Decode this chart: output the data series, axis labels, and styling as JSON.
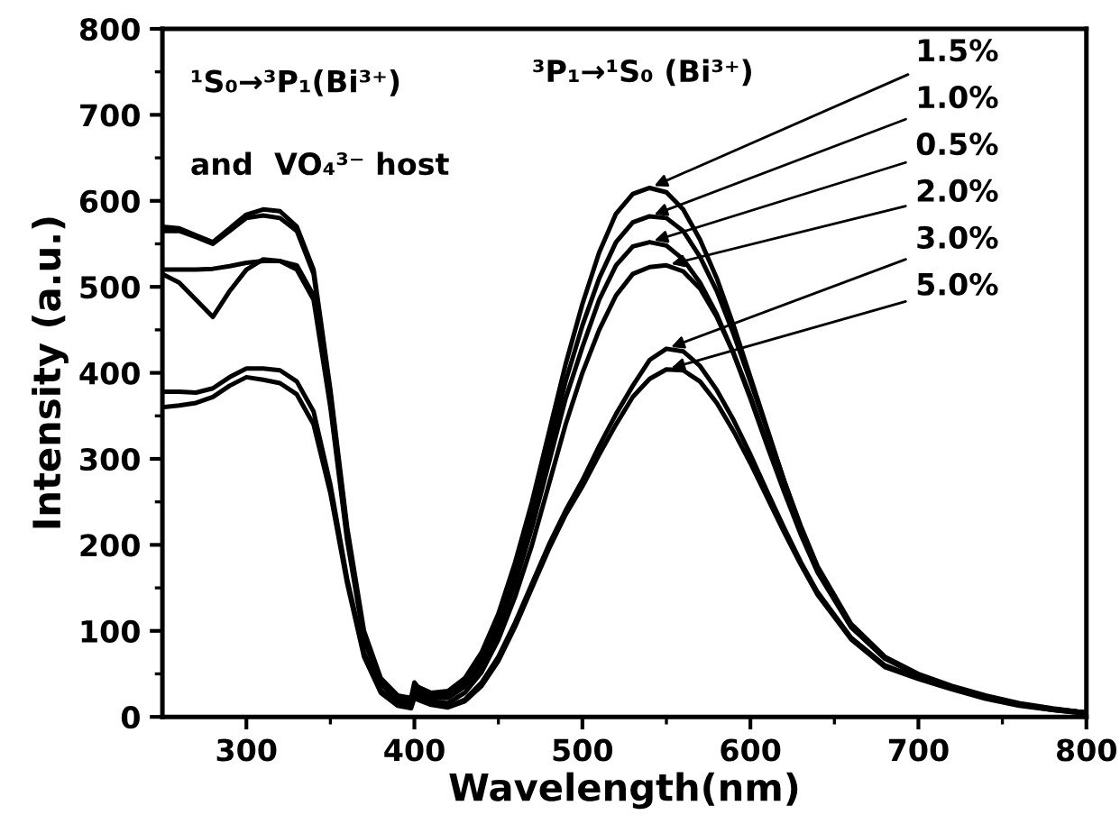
{
  "chart_data": {
    "type": "line",
    "xlabel": "Wavelength(nm)",
    "ylabel": "Intensity (a.u.)",
    "x": [
      250,
      260,
      270,
      280,
      290,
      300,
      310,
      320,
      330,
      340,
      350,
      360,
      370,
      380,
      390,
      398,
      400,
      402,
      410,
      420,
      430,
      440,
      450,
      460,
      470,
      480,
      490,
      500,
      510,
      520,
      530,
      540,
      550,
      560,
      570,
      580,
      590,
      600,
      610,
      620,
      630,
      640,
      660,
      680,
      700,
      720,
      740,
      760,
      780,
      800
    ],
    "series": [
      {
        "name": "1.5%",
        "color": "#000000",
        "values": [
          570,
          568,
          560,
          552,
          568,
          584,
          590,
          588,
          570,
          520,
          380,
          220,
          100,
          45,
          25,
          22,
          40,
          35,
          28,
          30,
          45,
          75,
          120,
          180,
          250,
          330,
          410,
          480,
          540,
          585,
          608,
          615,
          610,
          590,
          555,
          510,
          455,
          395,
          335,
          275,
          220,
          172,
          105,
          68,
          48,
          35,
          24,
          15,
          9,
          5
        ]
      },
      {
        "name": "1.0%",
        "color": "#000000",
        "values": [
          565,
          565,
          558,
          550,
          565,
          580,
          583,
          580,
          565,
          515,
          375,
          215,
          95,
          42,
          22,
          18,
          35,
          30,
          25,
          26,
          40,
          68,
          110,
          168,
          235,
          312,
          390,
          455,
          510,
          552,
          575,
          582,
          580,
          565,
          535,
          495,
          445,
          390,
          333,
          275,
          222,
          175,
          108,
          70,
          50,
          36,
          25,
          16,
          10,
          5
        ]
      },
      {
        "name": "0.5%",
        "color": "#000000",
        "values": [
          520,
          520,
          520,
          521,
          524,
          528,
          530,
          530,
          525,
          490,
          365,
          210,
          95,
          40,
          20,
          15,
          30,
          27,
          22,
          22,
          35,
          60,
          100,
          155,
          220,
          295,
          370,
          430,
          485,
          525,
          547,
          552,
          548,
          532,
          505,
          468,
          422,
          370,
          315,
          262,
          212,
          168,
          104,
          68,
          49,
          35,
          24,
          15,
          9,
          5
        ]
      },
      {
        "name": "2.0%",
        "color": "#000000",
        "values": [
          515,
          505,
          485,
          465,
          495,
          520,
          532,
          530,
          520,
          485,
          360,
          205,
          90,
          38,
          18,
          14,
          28,
          25,
          18,
          16,
          28,
          52,
          90,
          140,
          200,
          270,
          340,
          400,
          450,
          490,
          515,
          523,
          525,
          518,
          498,
          465,
          423,
          373,
          318,
          265,
          215,
          170,
          105,
          68,
          49,
          35,
          24,
          15,
          9,
          5
        ]
      },
      {
        "name": "3.0%",
        "color": "#000000",
        "values": [
          378,
          378,
          377,
          382,
          395,
          405,
          405,
          403,
          390,
          355,
          270,
          160,
          75,
          30,
          15,
          12,
          25,
          22,
          15,
          12,
          20,
          40,
          70,
          110,
          155,
          200,
          240,
          275,
          315,
          352,
          385,
          415,
          428,
          425,
          408,
          380,
          345,
          305,
          262,
          220,
          180,
          145,
          92,
          60,
          45,
          33,
          22,
          14,
          8,
          4
        ]
      },
      {
        "name": "5.0%",
        "color": "#000000",
        "values": [
          360,
          362,
          365,
          372,
          385,
          395,
          392,
          388,
          375,
          340,
          260,
          155,
          70,
          28,
          13,
          10,
          22,
          20,
          14,
          11,
          18,
          36,
          65,
          105,
          150,
          195,
          235,
          268,
          305,
          340,
          372,
          393,
          404,
          403,
          390,
          365,
          332,
          295,
          255,
          215,
          177,
          142,
          90,
          58,
          44,
          32,
          21,
          13,
          8,
          4
        ]
      }
    ],
    "annotations": [
      "¹S₀→³P₁(Bi³⁺)",
      "and  VO₄³⁻ host",
      "³P₁→¹S₀ (Bi³⁺)"
    ],
    "xlim": [
      250,
      800
    ],
    "ylim": [
      0,
      800
    ],
    "xticks": [
      300,
      400,
      500,
      600,
      700,
      800,
      {
        "value": 350,
        "label": null
      },
      {
        "value": 450,
        "label": null
      },
      {
        "value": 550,
        "label": null
      },
      {
        "value": 650,
        "label": null
      },
      {
        "value": 750,
        "label": null
      }
    ],
    "yticks": [
      0,
      100,
      200,
      300,
      400,
      500,
      600,
      700,
      800,
      {
        "value": 50,
        "label": null
      },
      {
        "value": 150,
        "label": null
      },
      {
        "value": 250,
        "label": null
      },
      {
        "value": 350,
        "label": null
      },
      {
        "value": 450,
        "label": null
      },
      {
        "value": 550,
        "label": null
      },
      {
        "value": 650,
        "label": null
      },
      {
        "value": 750,
        "label": null
      }
    ],
    "grid": false,
    "legend": false,
    "line_style": "solid",
    "marker": "none"
  }
}
